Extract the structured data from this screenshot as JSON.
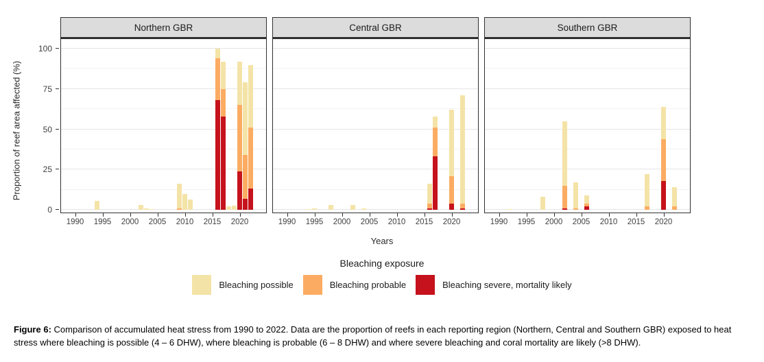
{
  "chart_data": {
    "type": "bar",
    "stacked": true,
    "x_label": "Years",
    "y_label": "Proportion of reef area affected (%)",
    "x_ticks": [
      1990,
      1995,
      2000,
      2005,
      2010,
      2015,
      2020
    ],
    "y_ticks": [
      0,
      25,
      50,
      75,
      100
    ],
    "ylim": [
      0,
      100
    ],
    "grid": true,
    "legend_position": "bottom",
    "stack_order_bottom_to_top": [
      "severe",
      "probable",
      "possible"
    ],
    "colors": {
      "possible": "#F4E3A7",
      "probable": "#FBAC62",
      "severe": "#C5121C"
    },
    "legend": {
      "title": "Bleaching exposure",
      "items": [
        {
          "key": "possible",
          "label": "Bleaching possible",
          "color": "#F4E3A7"
        },
        {
          "key": "probable",
          "label": "Bleaching probable",
          "color": "#FBAC62"
        },
        {
          "key": "severe",
          "label": "Bleaching severe, mortality likely",
          "color": "#C5121C"
        }
      ]
    },
    "panels": [
      {
        "label": "Northern GBR",
        "bars": [
          {
            "year": 1994,
            "severe": 0,
            "probable": 0,
            "possible": 5.5
          },
          {
            "year": 2002,
            "severe": 0,
            "probable": 0,
            "possible": 3
          },
          {
            "year": 2003,
            "severe": 0,
            "probable": 0,
            "possible": 1
          },
          {
            "year": 2004,
            "severe": 0,
            "probable": 0,
            "possible": 0.5
          },
          {
            "year": 2009,
            "severe": 0,
            "probable": 1,
            "possible": 15
          },
          {
            "year": 2010,
            "severe": 0,
            "probable": 0,
            "possible": 10
          },
          {
            "year": 2011,
            "severe": 0,
            "probable": 0,
            "possible": 6.5
          },
          {
            "year": 2016,
            "severe": 68,
            "probable": 26,
            "possible": 6
          },
          {
            "year": 2017,
            "severe": 58,
            "probable": 17,
            "possible": 17
          },
          {
            "year": 2018,
            "severe": 0,
            "probable": 0,
            "possible": 2
          },
          {
            "year": 2019,
            "severe": 0,
            "probable": 0,
            "possible": 2.5
          },
          {
            "year": 2020,
            "severe": 24,
            "probable": 41,
            "possible": 27
          },
          {
            "year": 2021,
            "severe": 7,
            "probable": 27,
            "possible": 45
          },
          {
            "year": 2022,
            "severe": 13,
            "probable": 38,
            "possible": 39
          }
        ]
      },
      {
        "label": "Central GBR",
        "bars": [
          {
            "year": 1994,
            "severe": 0,
            "probable": 0,
            "possible": 0.5
          },
          {
            "year": 1995,
            "severe": 0,
            "probable": 0,
            "possible": 1
          },
          {
            "year": 1998,
            "severe": 0,
            "probable": 0,
            "possible": 3
          },
          {
            "year": 2002,
            "severe": 0,
            "probable": 0,
            "possible": 3
          },
          {
            "year": 2004,
            "severe": 0,
            "probable": 0,
            "possible": 1
          },
          {
            "year": 2016,
            "severe": 1,
            "probable": 3,
            "possible": 12
          },
          {
            "year": 2017,
            "severe": 33,
            "probable": 18,
            "possible": 7
          },
          {
            "year": 2020,
            "severe": 4,
            "probable": 17,
            "possible": 41
          },
          {
            "year": 2022,
            "severe": 1,
            "probable": 3,
            "possible": 67
          }
        ]
      },
      {
        "label": "Southern GBR",
        "bars": [
          {
            "year": 1992,
            "severe": 0,
            "probable": 0,
            "possible": 0.5
          },
          {
            "year": 1998,
            "severe": 0,
            "probable": 0,
            "possible": 8
          },
          {
            "year": 2002,
            "severe": 1,
            "probable": 14,
            "possible": 40
          },
          {
            "year": 2004,
            "severe": 0,
            "probable": 1,
            "possible": 16
          },
          {
            "year": 2006,
            "severe": 2,
            "probable": 2,
            "possible": 5
          },
          {
            "year": 2017,
            "severe": 0,
            "probable": 2,
            "possible": 20
          },
          {
            "year": 2020,
            "severe": 18,
            "probable": 26,
            "possible": 20
          },
          {
            "year": 2022,
            "severe": 0,
            "probable": 2,
            "possible": 12
          }
        ]
      }
    ]
  },
  "caption": {
    "label": "Figure 6:",
    "text": " Comparison of accumulated heat stress from 1990 to 2022. Data are the proportion of reefs in each reporting region (Northern, Central and Southern GBR) exposed to heat stress where bleaching is possible (4 – 6 DHW), where bleaching is probable (6 – 8 DHW) and where severe bleaching and coral mortality are likely (>8 DHW)."
  }
}
